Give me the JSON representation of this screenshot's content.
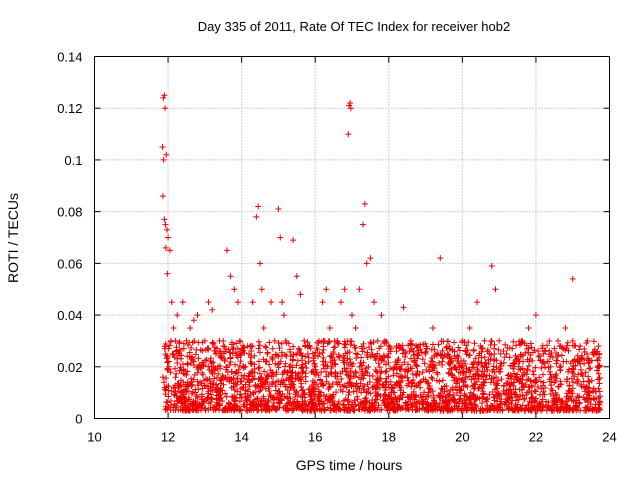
{
  "chart_data": {
    "type": "scatter",
    "title": "Day 335 of 2011, Rate Of TEC Index for receiver hob2",
    "xlabel": "GPS time / hours",
    "ylabel": "ROTI / TECUs",
    "xlim": [
      10,
      24
    ],
    "ylim": [
      0,
      0.14
    ],
    "xticks": [
      10,
      12,
      14,
      16,
      18,
      20,
      22,
      24
    ],
    "yticks": [
      0,
      0.02,
      0.04,
      0.06,
      0.08,
      0.1,
      0.12,
      0.14
    ],
    "xtick_labels": [
      "10",
      "12",
      "14",
      "16",
      "18",
      "20",
      "22",
      "24"
    ],
    "ytick_labels": [
      "0",
      "0.02",
      "0.04",
      "0.06",
      "0.08",
      "0.1",
      "0.12",
      "0.14"
    ],
    "grid": true,
    "marker": "plus",
    "color": "#ee0000",
    "series": [
      {
        "name": "ROTI",
        "x": [
          11.85,
          11.87,
          11.9,
          11.92,
          11.88,
          11.95,
          11.86,
          11.9,
          11.93,
          11.97,
          11.89,
          11.91,
          11.86,
          11.94,
          11.98,
          12.0,
          12.05,
          12.1,
          12.02,
          12.08,
          12.12,
          12.15,
          12.2,
          12.25,
          12.3,
          12.4,
          12.5,
          12.6,
          12.7,
          12.8,
          12.9,
          13.0,
          13.1,
          13.2,
          13.3,
          13.4,
          13.5,
          13.6,
          13.7,
          13.8,
          13.9,
          13.95,
          14.0,
          14.05,
          14.1,
          14.15,
          14.2,
          14.3,
          14.4,
          14.45,
          14.5,
          14.55,
          14.6,
          14.7,
          14.8,
          14.9,
          15.0,
          15.05,
          15.1,
          15.15,
          15.2,
          15.3,
          15.4,
          15.5,
          15.6,
          15.7,
          15.8,
          15.9,
          16.0,
          16.1,
          16.2,
          16.3,
          16.4,
          16.5,
          16.6,
          16.7,
          16.8,
          16.9,
          16.92,
          16.95,
          16.97,
          17.0,
          17.1,
          17.2,
          17.3,
          17.35,
          17.4,
          17.5,
          17.6,
          17.7,
          17.8,
          17.9,
          18.0,
          18.2,
          18.4,
          18.6,
          18.8,
          19.0,
          19.2,
          19.4,
          19.6,
          19.8,
          20.0,
          20.2,
          20.4,
          20.6,
          20.8,
          20.9,
          21.0,
          21.2,
          21.4,
          21.6,
          21.8,
          22.0,
          22.2,
          22.4,
          22.6,
          22.8,
          23.0,
          23.2,
          23.4,
          23.6,
          23.7
        ],
        "y": [
          0.105,
          0.124,
          0.125,
          0.12,
          0.1,
          0.102,
          0.086,
          0.077,
          0.075,
          0.073,
          0.014,
          0.012,
          0.016,
          0.066,
          0.056,
          0.07,
          0.065,
          0.045,
          0.02,
          0.03,
          0.025,
          0.035,
          0.03,
          0.04,
          0.025,
          0.045,
          0.03,
          0.035,
          0.038,
          0.04,
          0.02,
          0.03,
          0.045,
          0.042,
          0.025,
          0.03,
          0.028,
          0.065,
          0.055,
          0.05,
          0.045,
          0.03,
          0.008,
          0.012,
          0.02,
          0.015,
          0.025,
          0.045,
          0.078,
          0.082,
          0.06,
          0.05,
          0.035,
          0.025,
          0.045,
          0.03,
          0.081,
          0.07,
          0.045,
          0.04,
          0.03,
          0.02,
          0.069,
          0.055,
          0.048,
          0.03,
          0.025,
          0.018,
          0.02,
          0.03,
          0.045,
          0.05,
          0.035,
          0.025,
          0.03,
          0.045,
          0.05,
          0.11,
          0.121,
          0.122,
          0.12,
          0.04,
          0.035,
          0.05,
          0.075,
          0.083,
          0.06,
          0.062,
          0.045,
          0.03,
          0.04,
          0.03,
          0.025,
          0.02,
          0.043,
          0.03,
          0.028,
          0.025,
          0.035,
          0.062,
          0.025,
          0.02,
          0.03,
          0.035,
          0.045,
          0.03,
          0.059,
          0.05,
          0.03,
          0.025,
          0.02,
          0.03,
          0.035,
          0.04,
          0.025,
          0.02,
          0.03,
          0.035,
          0.054,
          0.028,
          0.03,
          0.025,
          0.028
        ]
      }
    ],
    "band": {
      "x_start": 11.9,
      "x_end": 23.75,
      "y_low": 0.003,
      "y_high": 0.03,
      "count": 2600
    }
  }
}
